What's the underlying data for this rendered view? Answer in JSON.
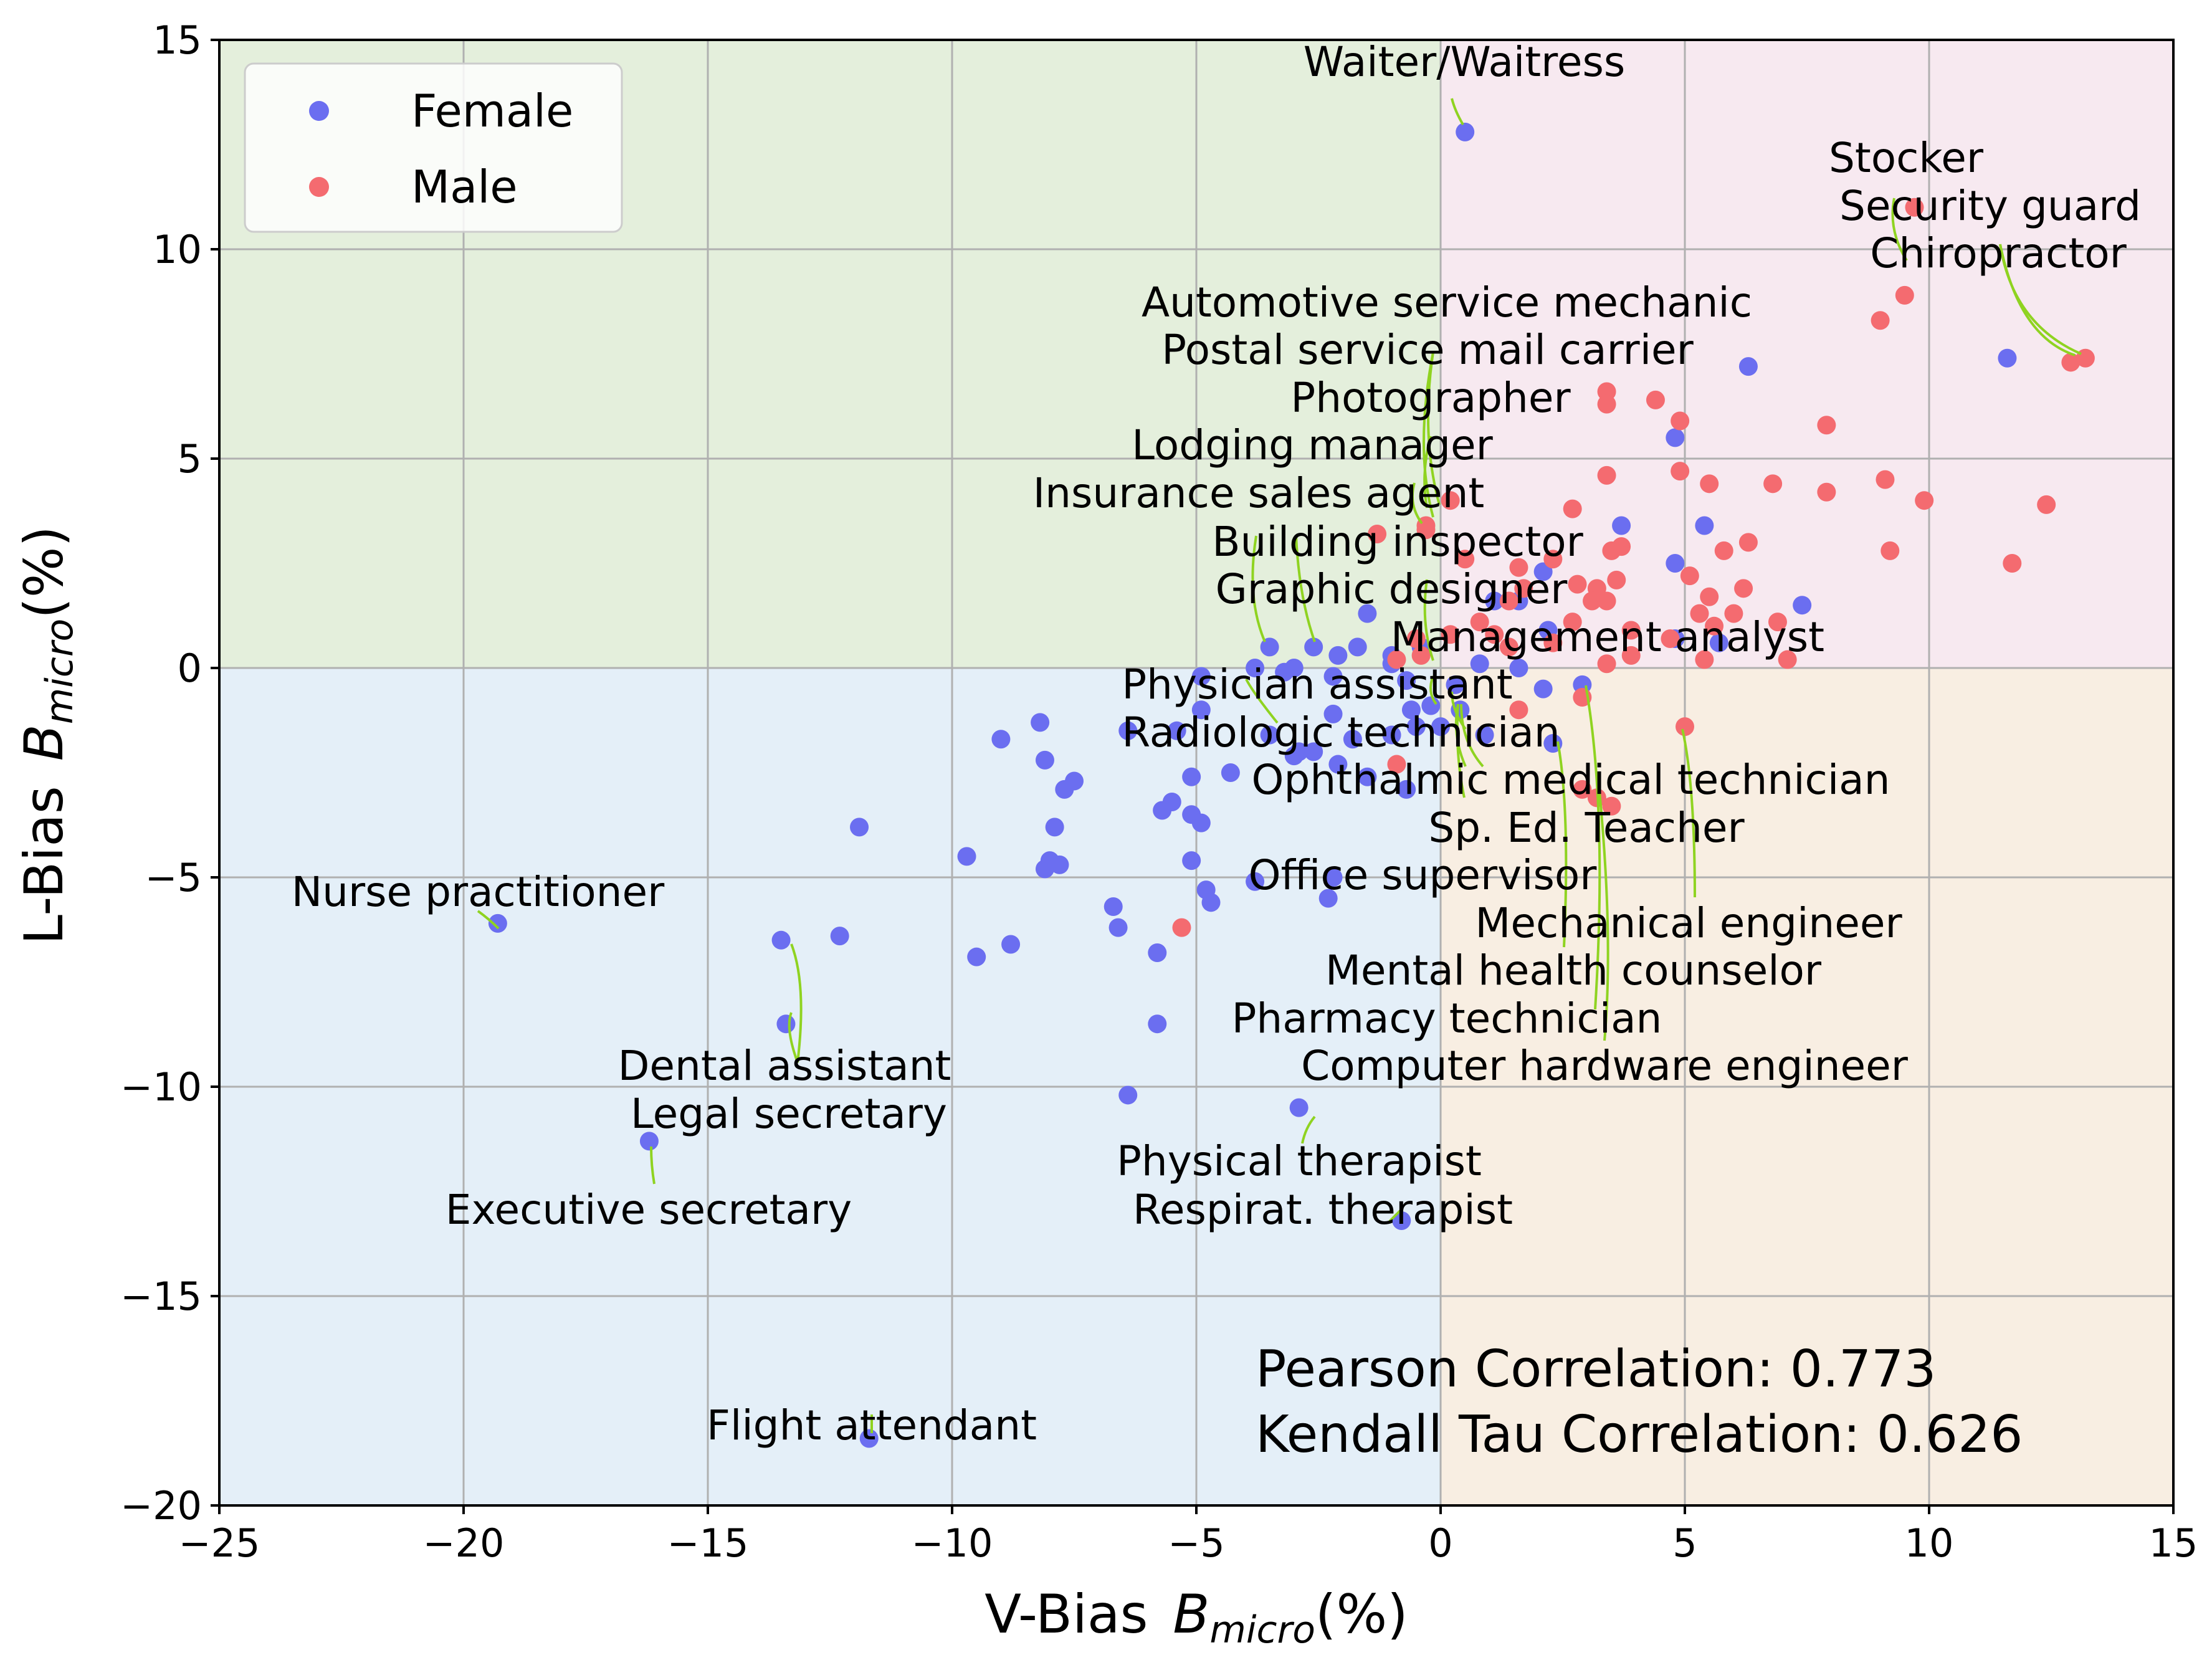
{
  "chart_data": {
    "type": "scatter",
    "title": "",
    "xlabel": "V-Bias",
    "ylabel": "L-Bias",
    "axis_symbol": "B",
    "axis_subscript": "micro",
    "axis_unit": "(%)",
    "xlim": [
      -25,
      15
    ],
    "ylim": [
      -20,
      15
    ],
    "xticks": [
      -25,
      -20,
      -15,
      -10,
      -5,
      0,
      5,
      10,
      15
    ],
    "yticks": [
      -20,
      -15,
      -10,
      -5,
      0,
      5,
      10,
      15
    ],
    "xtick_labels": [
      "−25",
      "−20",
      "−15",
      "−10",
      "−5",
      "0",
      "5",
      "10",
      "15"
    ],
    "ytick_labels": [
      "−20",
      "−15",
      "−10",
      "−5",
      "0",
      "5",
      "10",
      "15"
    ],
    "grid": true,
    "legend_position": "top-left",
    "quadrant_colors": {
      "top_left": "#e4efdc",
      "top_right": "#f7e9f0",
      "bottom_left": "#e4eff8",
      "bottom_right": "#f8eee2"
    },
    "series": [
      {
        "name": "Female",
        "color": "#6b6ef0",
        "points": [
          [
            0.5,
            12.8
          ],
          [
            6.3,
            7.2
          ],
          [
            11.6,
            7.4
          ],
          [
            4.8,
            5.5
          ],
          [
            3.7,
            3.4
          ],
          [
            5.4,
            3.4
          ],
          [
            4.8,
            2.5
          ],
          [
            2.1,
            2.3
          ],
          [
            7.4,
            1.5
          ],
          [
            1.6,
            1.6
          ],
          [
            1.1,
            1.6
          ],
          [
            2.2,
            0.9
          ],
          [
            -1.5,
            1.3
          ],
          [
            -3.5,
            0.5
          ],
          [
            -2.6,
            0.5
          ],
          [
            -1.7,
            0.5
          ],
          [
            -2.1,
            0.3
          ],
          [
            -1.0,
            0.3
          ],
          [
            -1.0,
            0.1
          ],
          [
            -0.4,
            0.5
          ],
          [
            0.8,
            0.1
          ],
          [
            1.6,
            0.0
          ],
          [
            4.8,
            0.7
          ],
          [
            5.7,
            0.6
          ],
          [
            -4.9,
            -0.2
          ],
          [
            -3.8,
            0.0
          ],
          [
            -3.2,
            -0.1
          ],
          [
            -3.0,
            0.0
          ],
          [
            -2.2,
            -0.2
          ],
          [
            -0.7,
            -0.3
          ],
          [
            0.3,
            -0.4
          ],
          [
            2.1,
            -0.5
          ],
          [
            2.9,
            -0.4
          ],
          [
            -4.9,
            -1.0
          ],
          [
            -2.2,
            -1.1
          ],
          [
            -0.6,
            -1.0
          ],
          [
            -0.2,
            -0.9
          ],
          [
            0.4,
            -1.0
          ],
          [
            -8.2,
            -1.3
          ],
          [
            -9.0,
            -1.7
          ],
          [
            -6.4,
            -1.5
          ],
          [
            -5.4,
            -1.5
          ],
          [
            -3.5,
            -1.6
          ],
          [
            -2.9,
            -2.0
          ],
          [
            -2.6,
            -2.0
          ],
          [
            -1.8,
            -1.7
          ],
          [
            -1.0,
            -1.6
          ],
          [
            -0.5,
            -1.4
          ],
          [
            0.0,
            -1.4
          ],
          [
            0.9,
            -1.6
          ],
          [
            2.3,
            -1.8
          ],
          [
            -8.1,
            -2.2
          ],
          [
            -7.5,
            -2.7
          ],
          [
            -7.7,
            -2.9
          ],
          [
            -5.1,
            -2.6
          ],
          [
            -4.3,
            -2.5
          ],
          [
            -3.0,
            -2.1
          ],
          [
            -2.1,
            -2.3
          ],
          [
            -1.5,
            -2.6
          ],
          [
            -0.7,
            -2.9
          ],
          [
            -5.5,
            -3.2
          ],
          [
            -5.7,
            -3.4
          ],
          [
            -5.1,
            -3.5
          ],
          [
            -4.9,
            -3.7
          ],
          [
            -11.9,
            -3.8
          ],
          [
            -7.9,
            -3.8
          ],
          [
            -9.7,
            -4.5
          ],
          [
            -8.0,
            -4.6
          ],
          [
            -7.8,
            -4.7
          ],
          [
            -8.1,
            -4.8
          ],
          [
            -5.1,
            -4.6
          ],
          [
            -3.8,
            -5.1
          ],
          [
            -2.2,
            -5.0
          ],
          [
            -4.8,
            -5.3
          ],
          [
            -2.3,
            -5.5
          ],
          [
            -4.7,
            -5.6
          ],
          [
            -6.7,
            -5.7
          ],
          [
            -6.6,
            -6.2
          ],
          [
            -5.8,
            -6.8
          ],
          [
            -12.3,
            -6.4
          ],
          [
            -8.8,
            -6.6
          ],
          [
            -9.5,
            -6.9
          ],
          [
            -19.3,
            -6.1
          ],
          [
            -13.5,
            -6.5
          ],
          [
            -13.4,
            -8.5
          ],
          [
            -5.8,
            -8.5
          ],
          [
            -6.4,
            -10.2
          ],
          [
            -2.9,
            -10.5
          ],
          [
            -16.2,
            -11.3
          ],
          [
            -0.8,
            -13.2
          ],
          [
            -11.7,
            -18.4
          ]
        ]
      },
      {
        "name": "Male",
        "color": "#f46b70",
        "points": [
          [
            9.7,
            11.0
          ],
          [
            9.5,
            8.9
          ],
          [
            9.0,
            8.3
          ],
          [
            12.9,
            7.3
          ],
          [
            13.2,
            7.4
          ],
          [
            3.4,
            6.6
          ],
          [
            3.4,
            6.3
          ],
          [
            4.4,
            6.4
          ],
          [
            4.9,
            5.9
          ],
          [
            7.9,
            5.8
          ],
          [
            4.9,
            4.7
          ],
          [
            3.4,
            4.6
          ],
          [
            5.5,
            4.4
          ],
          [
            6.8,
            4.4
          ],
          [
            7.9,
            4.2
          ],
          [
            9.1,
            4.5
          ],
          [
            9.9,
            4.0
          ],
          [
            12.4,
            3.9
          ],
          [
            0.2,
            4.0
          ],
          [
            -0.3,
            3.4
          ],
          [
            -0.3,
            3.3
          ],
          [
            -1.3,
            3.2
          ],
          [
            2.7,
            3.8
          ],
          [
            3.5,
            2.8
          ],
          [
            3.7,
            2.9
          ],
          [
            5.8,
            2.8
          ],
          [
            6.3,
            3.0
          ],
          [
            9.2,
            2.8
          ],
          [
            11.7,
            2.5
          ],
          [
            0.5,
            2.6
          ],
          [
            1.6,
            2.4
          ],
          [
            2.3,
            2.6
          ],
          [
            5.1,
            2.2
          ],
          [
            3.2,
            1.9
          ],
          [
            3.6,
            2.1
          ],
          [
            2.8,
            2.0
          ],
          [
            1.7,
            1.9
          ],
          [
            6.2,
            1.9
          ],
          [
            1.4,
            1.6
          ],
          [
            3.1,
            1.6
          ],
          [
            3.4,
            1.6
          ],
          [
            5.5,
            1.7
          ],
          [
            5.3,
            1.3
          ],
          [
            6.0,
            1.3
          ],
          [
            6.9,
            1.1
          ],
          [
            0.8,
            1.1
          ],
          [
            2.7,
            1.1
          ],
          [
            5.6,
            1.0
          ],
          [
            -0.5,
            0.7
          ],
          [
            0.2,
            0.8
          ],
          [
            1.1,
            0.8
          ],
          [
            2.3,
            0.6
          ],
          [
            3.9,
            0.9
          ],
          [
            4.7,
            0.7
          ],
          [
            -0.4,
            0.3
          ],
          [
            -0.9,
            0.2
          ],
          [
            1.4,
            0.5
          ],
          [
            3.4,
            0.1
          ],
          [
            3.9,
            0.3
          ],
          [
            5.4,
            0.2
          ],
          [
            7.1,
            0.2
          ],
          [
            1.6,
            -1.0
          ],
          [
            2.9,
            -0.7
          ],
          [
            5.0,
            -1.4
          ],
          [
            -0.9,
            -2.3
          ],
          [
            2.9,
            -2.9
          ],
          [
            3.2,
            -3.1
          ],
          [
            3.5,
            -3.3
          ],
          [
            -5.3,
            -6.2
          ]
        ]
      }
    ],
    "annotations": [
      "Waiter/Waitress",
      "Stocker",
      "Security guard",
      "Chiropractor",
      "Automotive service mechanic",
      "Postal service mail carrier",
      "Photographer",
      "Lodging manager",
      "Insurance sales agent",
      "Building inspector",
      "Graphic designer",
      "Management analyst",
      "Physician assistant",
      "Radiologic technician",
      "Ophthalmic medical technician",
      "Sp. Ed. Teacher",
      "Office supervisor",
      "Mechanical engineer",
      "Mental health counselor",
      "Pharmacy technician",
      "Computer hardware engineer",
      "Nurse practitioner",
      "Dental assistant",
      "Legal secretary",
      "Executive secretary",
      "Physical therapist",
      "Respirat. therapist",
      "Flight attendant"
    ],
    "correlations": [
      "Pearson Correlation: 0.773",
      "Kendall Tau Correlation: 0.626"
    ]
  }
}
